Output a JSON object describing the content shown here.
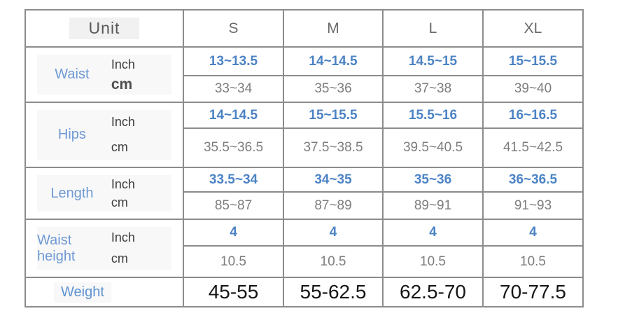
{
  "chart_data": {
    "type": "table",
    "header": {
      "unit_label": "Unit",
      "sizes": [
        "S",
        "M",
        "L",
        "XL"
      ]
    },
    "unit_labels": {
      "inch": "Inch",
      "cm": "cm"
    },
    "groups": [
      {
        "name": "Waist",
        "inch": [
          "13~13.5",
          "14~14.5",
          "14.5~15",
          "15~15.5"
        ],
        "cm": [
          "33~34",
          "35~36",
          "37~38",
          "39~40"
        ]
      },
      {
        "name": "Hips",
        "inch": [
          "14~14.5",
          "15~15.5",
          "15.5~16",
          "16~16.5"
        ],
        "cm": [
          "35.5~36.5",
          "37.5~38.5",
          "39.5~40.5",
          "41.5~42.5"
        ]
      },
      {
        "name": "Length",
        "inch": [
          "33.5~34",
          "34~35",
          "35~36",
          "36~36.5"
        ],
        "cm": [
          "85~87",
          "87~89",
          "89~91",
          "91~93"
        ]
      },
      {
        "name": "Waist height",
        "inch": [
          "4",
          "4",
          "4",
          "4"
        ],
        "cm": [
          "10.5",
          "10.5",
          "10.5",
          "10.5"
        ]
      }
    ],
    "weight": {
      "label": "Weight",
      "values": [
        "45-55",
        "55-62.5",
        "62.5-70",
        "70-77.5"
      ]
    }
  },
  "colors": {
    "value_blue": "#4c83c4",
    "label_blue": "#6f9ad3",
    "gridline_gray": "#8c8c8c",
    "cm_text_gray": "#7d7d7d",
    "header_text_gray": "#6a6a6a",
    "weight_text_black": "#161616",
    "highlight_patch": "#f1f1f2"
  }
}
